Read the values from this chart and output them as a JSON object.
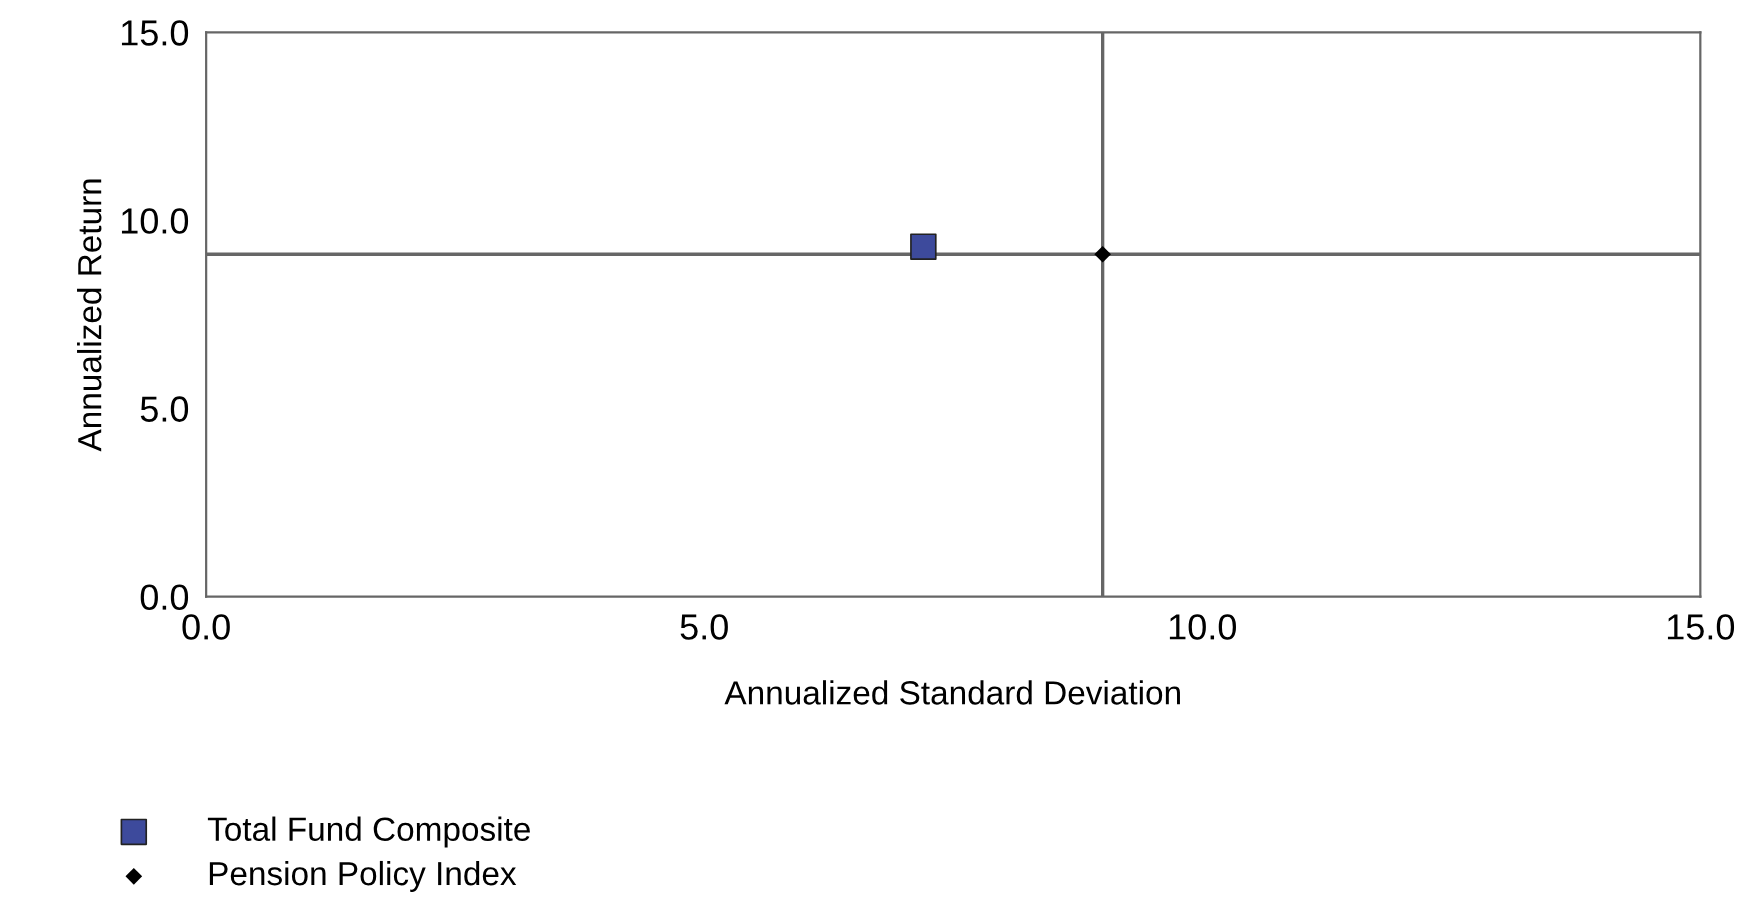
{
  "chart_data": {
    "type": "scatter",
    "xlabel": "Annualized Standard Deviation",
    "ylabel": "Annualized Return",
    "xlim": [
      0,
      15
    ],
    "ylim": [
      0,
      15
    ],
    "xticks": [
      {
        "value": 0,
        "label": "0.0"
      },
      {
        "value": 5,
        "label": "5.0"
      },
      {
        "value": 10,
        "label": "10.0"
      },
      {
        "value": 15,
        "label": "15.0"
      }
    ],
    "yticks": [
      {
        "value": 0,
        "label": "0.0"
      },
      {
        "value": 5,
        "label": "5.0"
      },
      {
        "value": 10,
        "label": "10.0"
      },
      {
        "value": 15,
        "label": "15.0"
      }
    ],
    "series": [
      {
        "name": "Total Fund Composite",
        "color": "#3d4a9c",
        "marker": "square",
        "x": [
          7.2
        ],
        "values": [
          9.3
        ]
      },
      {
        "name": "Pension Policy Index",
        "color": "#000000",
        "marker": "diamond",
        "x": [
          9.0
        ],
        "values": [
          9.1
        ]
      }
    ],
    "ref_lines": [
      {
        "axis": "x",
        "value": 9.0,
        "color": "#666666"
      },
      {
        "axis": "y",
        "value": 9.1,
        "color": "#666666"
      }
    ],
    "legend": "bottom left",
    "grid": false
  }
}
